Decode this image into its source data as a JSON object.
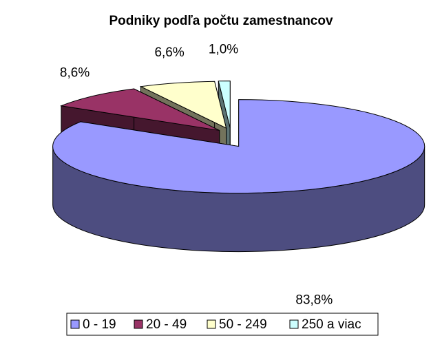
{
  "chart_data": {
    "type": "pie3d",
    "title": "Podniky podľa počtu zamestnancov",
    "categories": [
      "0 - 19",
      "20 - 49",
      "50 - 249",
      "250 a viac"
    ],
    "values": [
      83.8,
      8.6,
      6.6,
      1.0
    ],
    "value_labels": [
      "83,8%",
      "8,6%",
      "6,6%",
      "1,0%"
    ],
    "colors": [
      "#9999ff",
      "#993366",
      "#ffffcc",
      "#ccffff"
    ],
    "legend": "bottom"
  }
}
